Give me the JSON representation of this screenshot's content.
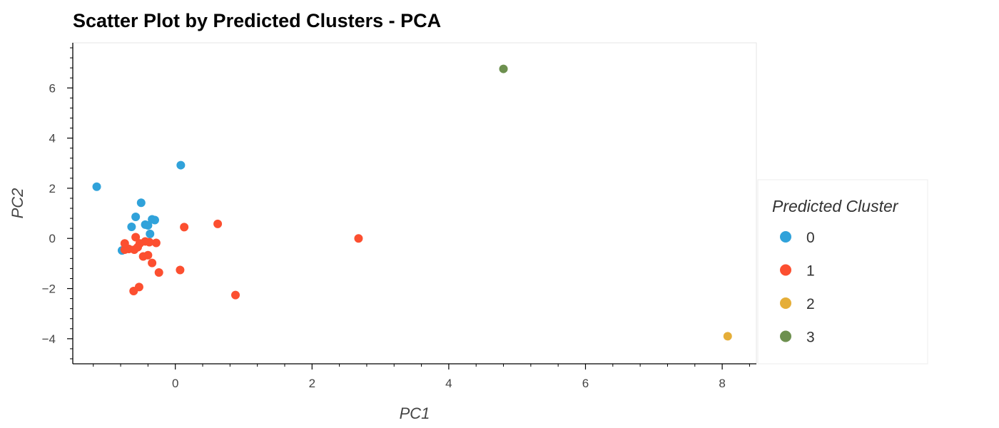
{
  "chart_data": {
    "type": "scatter",
    "title": "Scatter Plot by Predicted Clusters - PCA",
    "xlabel": "PC1",
    "ylabel": "PC2",
    "xlim": [
      -1.5,
      8.5
    ],
    "ylim": [
      -5,
      7.8
    ],
    "xticks": [
      0,
      2,
      4,
      6,
      8
    ],
    "yticks": [
      -4,
      -2,
      0,
      2,
      4,
      6
    ],
    "xtick_labels": [
      "0",
      "2",
      "4",
      "6",
      "8"
    ],
    "ytick_labels": [
      "−4",
      "−2",
      "0",
      "2",
      "4",
      "6"
    ],
    "grid": false,
    "legend": {
      "title": "Predicted Cluster",
      "position": "right"
    },
    "series": [
      {
        "name": "0",
        "color": "#30a2da",
        "points": [
          [
            -1.15,
            2.06
          ],
          [
            0.08,
            2.92
          ],
          [
            -0.5,
            1.42
          ],
          [
            -0.58,
            0.86
          ],
          [
            -0.64,
            0.46
          ],
          [
            -0.44,
            0.55
          ],
          [
            -0.4,
            0.52
          ],
          [
            -0.34,
            0.76
          ],
          [
            -0.3,
            0.73
          ],
          [
            -0.37,
            0.18
          ],
          [
            -0.78,
            -0.48
          ]
        ]
      },
      {
        "name": "1",
        "color": "#fc4f30",
        "points": [
          [
            2.68,
            0.0
          ],
          [
            0.62,
            0.58
          ],
          [
            0.13,
            0.45
          ],
          [
            -0.58,
            0.05
          ],
          [
            -0.28,
            -0.18
          ],
          [
            -0.38,
            -0.15
          ],
          [
            -0.44,
            -0.12
          ],
          [
            -0.52,
            -0.2
          ],
          [
            -0.55,
            -0.35
          ],
          [
            -0.6,
            -0.45
          ],
          [
            -0.68,
            -0.42
          ],
          [
            -0.74,
            -0.45
          ],
          [
            -0.74,
            -0.2
          ],
          [
            -0.47,
            -0.72
          ],
          [
            -0.4,
            -0.67
          ],
          [
            -0.34,
            -0.98
          ],
          [
            -0.24,
            -1.36
          ],
          [
            0.07,
            -1.26
          ],
          [
            0.88,
            -2.26
          ],
          [
            -0.53,
            -1.94
          ],
          [
            -0.61,
            -2.1
          ]
        ]
      },
      {
        "name": "2",
        "color": "#e5ae38",
        "points": [
          [
            8.08,
            -3.9
          ]
        ]
      },
      {
        "name": "3",
        "color": "#6d904f",
        "points": [
          [
            4.8,
            6.76
          ]
        ]
      }
    ]
  }
}
